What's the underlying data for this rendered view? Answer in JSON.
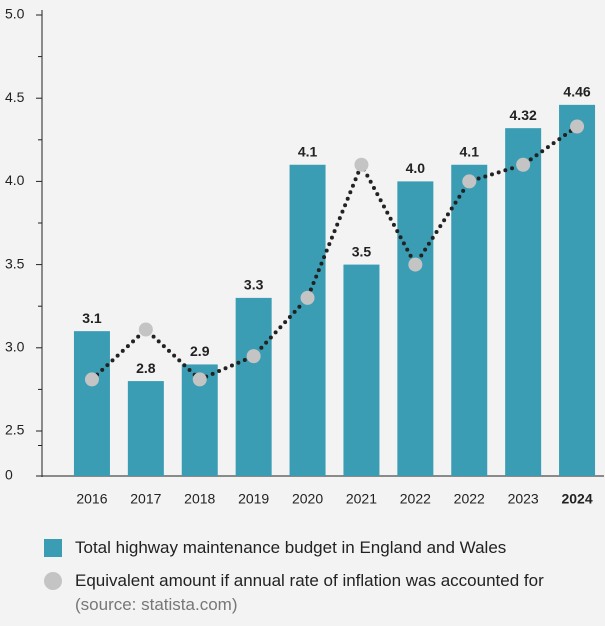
{
  "chart_data": {
    "type": "bar",
    "categories": [
      "2016",
      "2017",
      "2018",
      "2019",
      "2020",
      "2021",
      "2022",
      "2022",
      "2023",
      "2024"
    ],
    "bold_last_category": true,
    "series": [
      {
        "name": "Total highway maintenance budget in England and Wales",
        "type": "bar",
        "color": "#3a9db3",
        "values": [
          3.1,
          2.8,
          2.9,
          3.3,
          4.1,
          3.5,
          4.0,
          4.1,
          4.32,
          4.46
        ],
        "value_labels": [
          "3.1",
          "2.8",
          "2.9",
          "3.3",
          "4.1",
          "3.5",
          "4.0",
          "4.1",
          "4.32",
          "4.46"
        ]
      },
      {
        "name": "Equivalent amount if annual rate of inflation was accounted for",
        "type": "line",
        "color": "#c4c4c4",
        "line_color": "#222222",
        "values": [
          2.81,
          3.11,
          2.81,
          2.95,
          3.3,
          4.1,
          3.5,
          4.0,
          4.1,
          4.33
        ]
      }
    ],
    "source_note": "(source: statista.com)",
    "ylim": [
      2.5,
      5.0
    ],
    "axis_break": true,
    "yticks": [
      {
        "value": 0,
        "label": "0"
      },
      2.5,
      {
        "value": 3,
        "label": "3.0"
      },
      3.5,
      {
        "value": 4,
        "label": "4.0"
      },
      4.5,
      {
        "value": 5,
        "label": "5.0"
      }
    ],
    "minor_ticks": true
  }
}
